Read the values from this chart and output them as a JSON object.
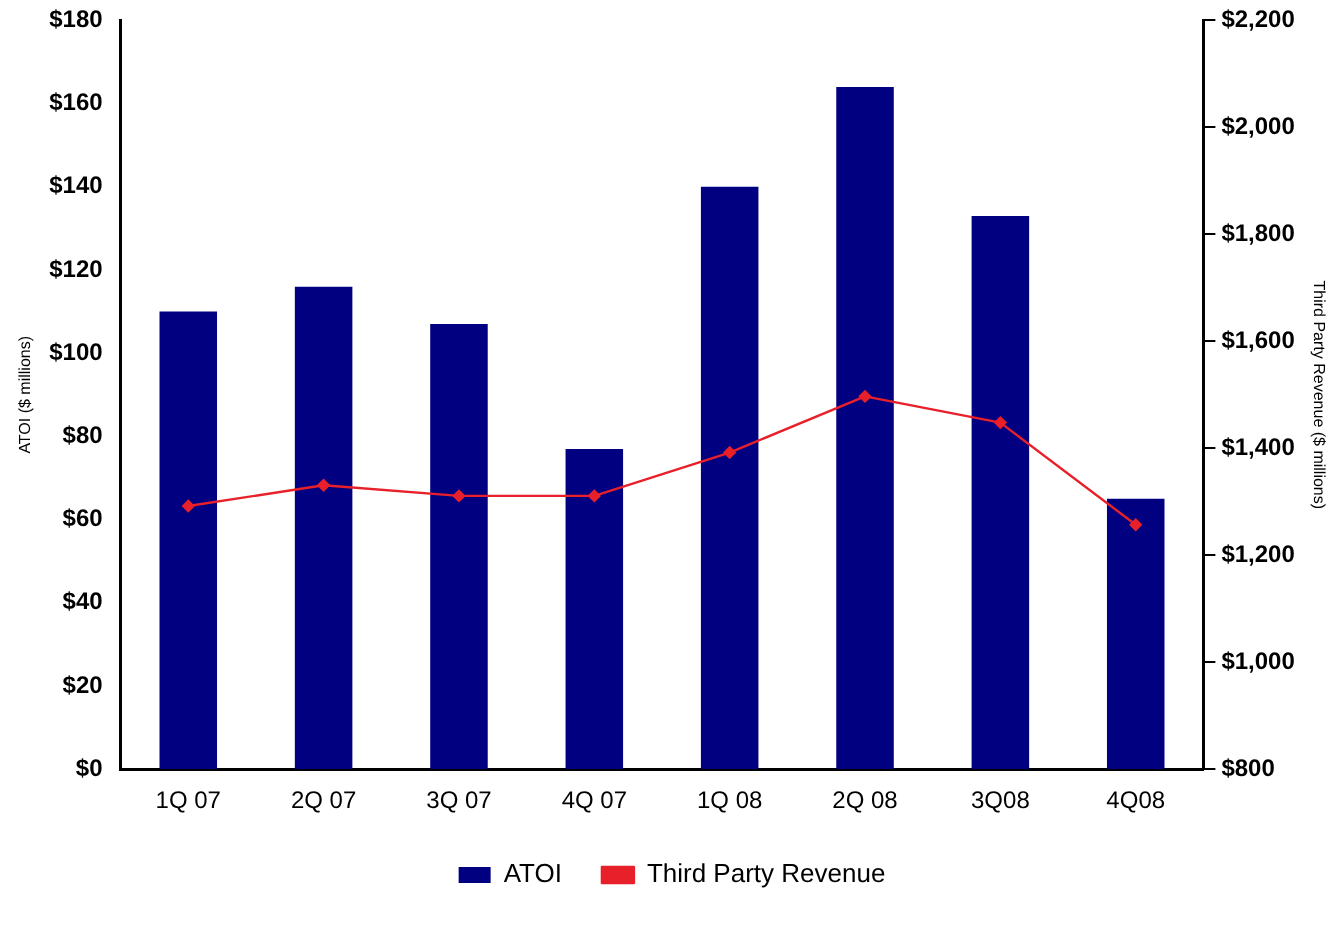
{
  "chart_data": {
    "type": "bar",
    "categories": [
      "1Q 07",
      "2Q 07",
      "3Q 07",
      "4Q 07",
      "1Q 08",
      "2Q 08",
      "3Q08",
      "4Q08"
    ],
    "ylabel": "ATOI ($ millions)",
    "y2label": "Third Party Revenue ($ millions)",
    "series": [
      {
        "name": "ATOI",
        "color": "#000080",
        "values": [
          110,
          116,
          107,
          77,
          140,
          164,
          133,
          65
        ]
      },
      {
        "name": "Third Party Revenue",
        "type": "line",
        "axis": "y2",
        "color": "#e8202a",
        "marker": "diamond",
        "values": [
          1292,
          1331,
          1311,
          1311,
          1392,
          1497,
          1448,
          1257
        ]
      }
    ],
    "ylim": [
      0,
      180
    ],
    "yticks": [
      {
        "value": 0,
        "label": "$0"
      },
      {
        "value": 20,
        "label": "$20"
      },
      {
        "value": 40,
        "label": "$40"
      },
      {
        "value": 60,
        "label": "$60"
      },
      {
        "value": 80,
        "label": "$80"
      },
      {
        "value": 100,
        "label": "$100"
      },
      {
        "value": 120,
        "label": "$120"
      },
      {
        "value": 140,
        "label": "$140"
      },
      {
        "value": 160,
        "label": "$160"
      },
      {
        "value": 180,
        "label": "$180"
      }
    ],
    "y2lim": [
      800,
      2200
    ],
    "y2ticks": [
      {
        "value": 800,
        "label": "$800"
      },
      {
        "value": 1000,
        "label": "$1,000"
      },
      {
        "value": 1200,
        "label": "$1,200"
      },
      {
        "value": 1400,
        "label": "$1,400"
      },
      {
        "value": 1600,
        "label": "$1,600"
      },
      {
        "value": 1800,
        "label": "$1,800"
      },
      {
        "value": 2000,
        "label": "$2,000"
      },
      {
        "value": 2200,
        "label": "$2,200"
      }
    ],
    "grid": false,
    "legend": "bottom"
  }
}
